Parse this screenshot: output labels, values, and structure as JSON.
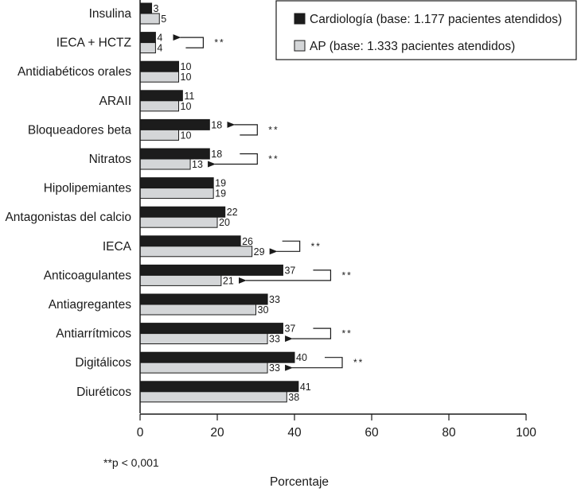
{
  "chart_data": {
    "type": "bar",
    "orientation": "horizontal",
    "title": "",
    "xlabel": "Porcentaje",
    "ylabel": "",
    "xlim": [
      0,
      100
    ],
    "xticks": [
      0,
      20,
      40,
      60,
      80,
      100
    ],
    "grid": false,
    "legend_position": "top-right",
    "categories": [
      "Insulina",
      "IECA + HCTZ",
      "Antidiabéticos orales",
      "ARAII",
      "Bloqueadores beta",
      "Nitratos",
      "Hipolipemiantes",
      "Antagonistas del calcio",
      "IECA",
      "Anticoagulantes",
      "Antiagregantes",
      "Antiarrítmicos",
      "Digitálicos",
      "Diuréticos"
    ],
    "series": [
      {
        "name": "Cardiología (base: 1.177 pacientes atendidos)",
        "color": "#1c1c1c",
        "values": [
          3,
          4,
          10,
          11,
          18,
          18,
          19,
          22,
          26,
          37,
          33,
          37,
          40,
          41
        ]
      },
      {
        "name": "AP (base: 1.333 pacientes atendidos)",
        "color": "#d4d6d8",
        "values": [
          5,
          4,
          10,
          10,
          10,
          13,
          19,
          20,
          29,
          21,
          30,
          33,
          33,
          38
        ]
      }
    ],
    "significance": {
      "marker": "**",
      "categories": [
        "IECA + HCTZ",
        "Bloqueadores beta",
        "Nitratos",
        "IECA",
        "Anticoagulantes",
        "Antiarrítmicos",
        "Digitálicos"
      ],
      "arrow_points_to": [
        "Cardiología",
        "Cardiología",
        "AP",
        "AP",
        "AP",
        "AP",
        "AP"
      ]
    },
    "footnote": "**p < 0,001"
  }
}
